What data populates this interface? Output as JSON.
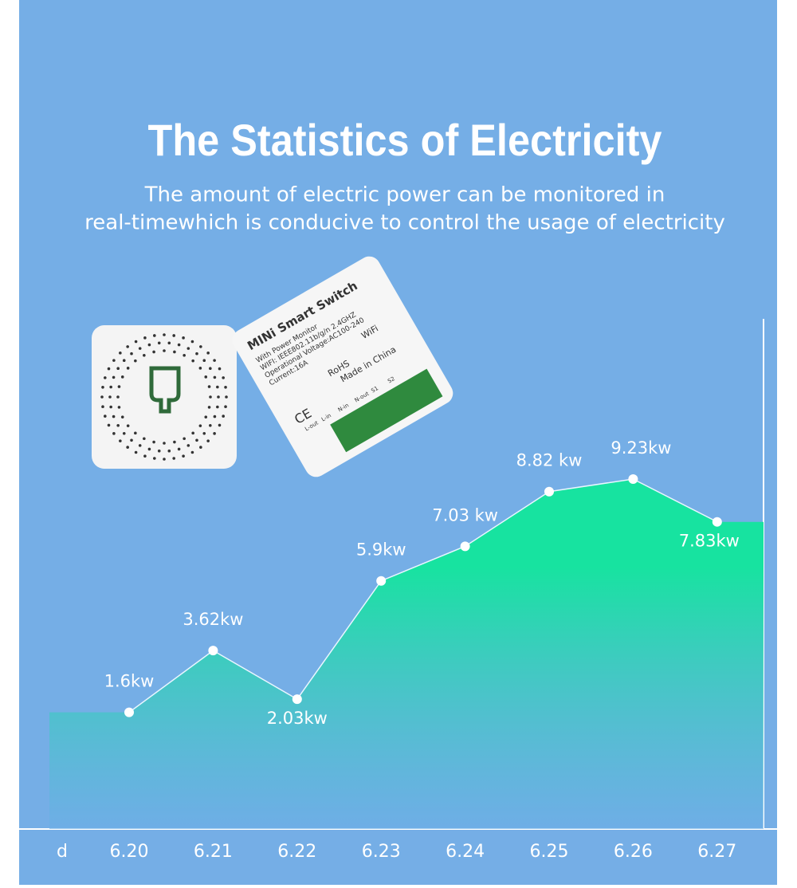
{
  "chart_data": {
    "type": "area",
    "title": "The Statistics of Electricity",
    "subtitle": [
      "The amount of electric power can be monitored in",
      "real-timewhich is conducive to control the usage of electricity"
    ],
    "xlabel": "d",
    "categories": [
      "6.20",
      "6.21",
      "6.22",
      "6.23",
      "6.24",
      "6.25",
      "6.26",
      "6.27"
    ],
    "values": [
      1.6,
      3.62,
      2.03,
      5.9,
      7.03,
      8.82,
      9.23,
      7.83
    ],
    "value_labels": [
      "1.6kw",
      "3.62kw",
      "2.03kw",
      "5.9kw",
      "7.03 kw",
      "8.82 kw",
      "9.23kw",
      "7.83kw"
    ],
    "color": "#17e3a0"
  },
  "product": {
    "name": "MINi Smart Switch",
    "lines": [
      "With Power Monitor",
      "WIFI: IEEE802.11b/g/n 2.4GHZ",
      "Operational Voltage:AC100-240",
      "Current:16A"
    ],
    "marks": [
      "RoHS",
      "Made in China",
      "CE",
      "WiFi"
    ],
    "terminals": [
      "L-out",
      "L-in",
      "N-in",
      "N-out",
      "S1",
      "S2"
    ]
  }
}
